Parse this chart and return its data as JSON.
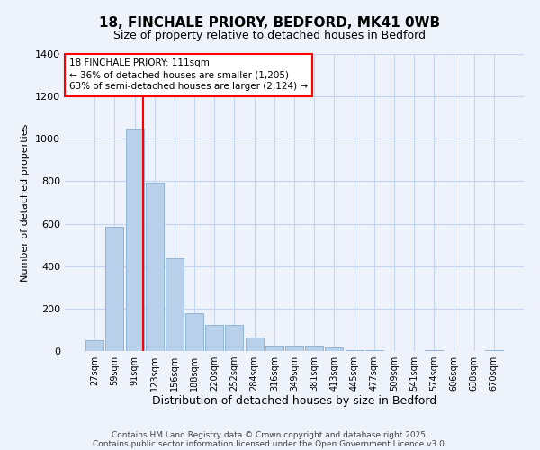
{
  "title1": "18, FINCHALE PRIORY, BEDFORD, MK41 0WB",
  "title2": "Size of property relative to detached houses in Bedford",
  "xlabel": "Distribution of detached houses by size in Bedford",
  "ylabel": "Number of detached properties",
  "categories": [
    "27sqm",
    "59sqm",
    "91sqm",
    "123sqm",
    "156sqm",
    "188sqm",
    "220sqm",
    "252sqm",
    "284sqm",
    "316sqm",
    "349sqm",
    "381sqm",
    "413sqm",
    "445sqm",
    "477sqm",
    "509sqm",
    "541sqm",
    "574sqm",
    "606sqm",
    "638sqm",
    "670sqm"
  ],
  "values": [
    50,
    585,
    1050,
    795,
    435,
    180,
    125,
    125,
    65,
    25,
    25,
    25,
    15,
    5,
    5,
    0,
    0,
    5,
    0,
    0,
    5
  ],
  "bar_color": "#b8d0ea",
  "bar_edge_color": "#90b4d8",
  "bg_color": "#eef2fb",
  "grid_color": "#c5d5ec",
  "vline_color": "red",
  "vline_x": 2.43,
  "annotation_title": "18 FINCHALE PRIORY: 111sqm",
  "annotation_line1": "← 36% of detached houses are smaller (1,205)",
  "annotation_line2": "63% of semi-detached houses are larger (2,124) →",
  "annotation_box_color": "#ffffff",
  "annotation_box_edge": "red",
  "ylim": [
    0,
    1400
  ],
  "yticks": [
    0,
    200,
    400,
    600,
    800,
    1000,
    1200,
    1400
  ],
  "footer1": "Contains HM Land Registry data © Crown copyright and database right 2025.",
  "footer2": "Contains public sector information licensed under the Open Government Licence v3.0.",
  "title1_fontsize": 11,
  "title2_fontsize": 9,
  "xlabel_fontsize": 9,
  "ylabel_fontsize": 8,
  "annotation_fontsize": 7.5,
  "footer_fontsize": 6.5
}
